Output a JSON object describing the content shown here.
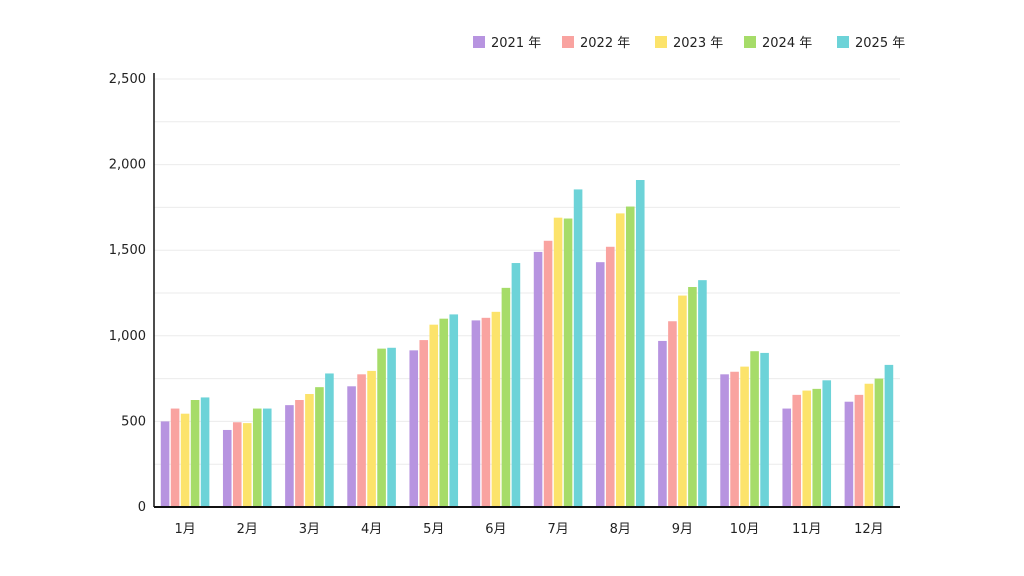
{
  "chart_data": {
    "type": "bar",
    "title": "",
    "xlabel": "",
    "ylabel": "",
    "categories": [
      "1月",
      "2月",
      "3月",
      "4月",
      "5月",
      "6月",
      "7月",
      "8月",
      "9月",
      "10月",
      "11月",
      "12月"
    ],
    "ylim": [
      0,
      2500
    ],
    "yticks": [
      0,
      500,
      1000,
      1500,
      2000,
      2500
    ],
    "ytick_labels": [
      "0",
      "500",
      "1,000",
      "1,500",
      "2,000",
      "2,500"
    ],
    "grid": true,
    "legend_position": "top-right",
    "series": [
      {
        "name": "2021 年",
        "color": "#b794e0",
        "values": [
          500,
          450,
          595,
          705,
          915,
          1090,
          1490,
          1430,
          970,
          775,
          575,
          615
        ]
      },
      {
        "name": "2022 年",
        "color": "#f9a3a0",
        "values": [
          575,
          495,
          625,
          775,
          975,
          1105,
          1555,
          1520,
          1085,
          790,
          655,
          655
        ]
      },
      {
        "name": "2023 年",
        "color": "#fce36b",
        "values": [
          545,
          490,
          660,
          795,
          1065,
          1140,
          1690,
          1715,
          1235,
          820,
          680,
          720
        ]
      },
      {
        "name": "2024 年",
        "color": "#a6dc69",
        "values": [
          625,
          575,
          700,
          925,
          1100,
          1280,
          1685,
          1755,
          1285,
          910,
          690,
          750
        ]
      },
      {
        "name": "2025 年",
        "color": "#6dd3d8",
        "values": [
          640,
          575,
          780,
          930,
          1125,
          1425,
          1855,
          1910,
          1325,
          900,
          740,
          830
        ]
      }
    ]
  }
}
